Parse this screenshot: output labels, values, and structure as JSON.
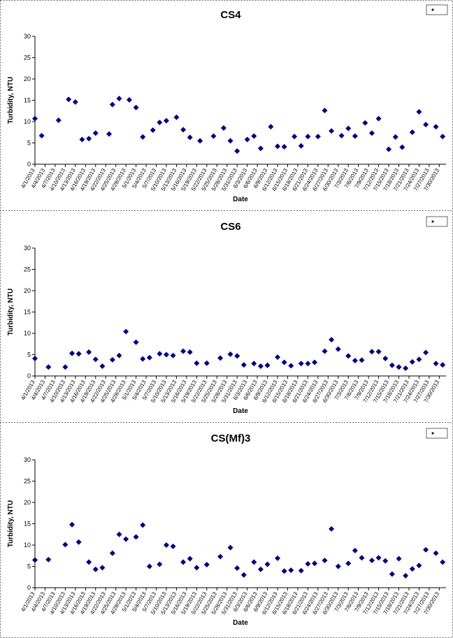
{
  "chart_data": [
    {
      "type": "scatter",
      "title": "CS4",
      "xlabel": "Date",
      "ylabel": "Turbidity, NTU",
      "color": "#000080",
      "xlim": [
        "4/1/2013",
        "8/1/2013"
      ],
      "ylim": [
        0,
        30
      ],
      "yticks": [
        0,
        5,
        10,
        15,
        20,
        25,
        30
      ],
      "xticks": [
        "4/1/2013",
        "4/4/2013",
        "4/7/2013",
        "4/10/2013",
        "4/13/2013",
        "4/16/2013",
        "4/19/2013",
        "4/22/2013",
        "4/25/2013",
        "4/28/2013",
        "5/1/2013",
        "5/4/2013",
        "5/7/2013",
        "5/10/2013",
        "5/13/2013",
        "5/16/2013",
        "5/19/2013",
        "5/22/2013",
        "5/25/2013",
        "5/28/2013",
        "5/31/2013",
        "6/3/2013",
        "6/6/2013",
        "6/9/2013",
        "6/12/2013",
        "6/15/2013",
        "6/18/2013",
        "6/21/2013",
        "6/24/2013",
        "6/27/2013",
        "6/30/2013",
        "7/3/2013",
        "7/6/2013",
        "7/9/2013",
        "7/12/2013",
        "7/15/2013",
        "7/18/2013",
        "7/21/2013",
        "7/24/2013",
        "7/27/2013",
        "7/30/2013"
      ],
      "x": [
        "4/1/2013",
        "4/3/2013",
        "4/8/2013",
        "4/11/2013",
        "4/13/2013",
        "4/15/2013",
        "4/17/2013",
        "4/19/2013",
        "4/23/2013",
        "4/24/2013",
        "4/26/2013",
        "4/29/2013",
        "5/1/2013",
        "5/3/2013",
        "5/6/2013",
        "5/8/2013",
        "5/10/2013",
        "5/13/2013",
        "5/15/2013",
        "5/17/2013",
        "5/20/2013",
        "5/24/2013",
        "5/27/2013",
        "5/29/2013",
        "5/31/2013",
        "6/3/2013",
        "6/5/2013",
        "6/7/2013",
        "6/10/2013",
        "6/12/2013",
        "6/14/2013",
        "6/17/2013",
        "6/19/2013",
        "6/21/2013",
        "6/24/2013",
        "6/26/2013",
        "6/28/2013",
        "7/1/2013",
        "7/3/2013",
        "7/5/2013",
        "7/8/2013",
        "7/10/2013",
        "7/12/2013",
        "7/15/2013",
        "7/17/2013",
        "7/19/2013",
        "7/22/2013",
        "7/24/2013",
        "7/26/2013",
        "7/29/2013",
        "7/31/2013"
      ],
      "values": [
        10.7,
        6.7,
        10.3,
        15.2,
        14.6,
        5.8,
        6.0,
        7.3,
        7.1,
        14.0,
        15.4,
        15.1,
        13.3,
        6.4,
        8.0,
        9.8,
        10.2,
        11.0,
        8.1,
        6.3,
        5.5,
        6.6,
        8.5,
        5.5,
        3.1,
        5.8,
        6.6,
        3.7,
        8.8,
        4.2,
        4.1,
        6.5,
        4.3,
        6.5,
        6.5,
        12.6,
        7.8,
        6.7,
        8.4,
        6.6,
        9.7,
        7.3,
        10.7,
        3.5,
        6.4,
        4.0,
        7.5,
        12.3,
        9.3,
        8.8,
        6.5
      ]
    },
    {
      "type": "scatter",
      "title": "CS6",
      "xlabel": "Date",
      "ylabel": "Turbidity, NTU",
      "color": "#000080",
      "xlim": [
        "4/1/2013",
        "8/1/2013"
      ],
      "ylim": [
        0,
        30
      ],
      "yticks": [
        0,
        5,
        10,
        15,
        20,
        25,
        30
      ],
      "xticks": [
        "4/1/2013",
        "4/4/2013",
        "4/7/2013",
        "4/10/2013",
        "4/13/2013",
        "4/16/2013",
        "4/19/2013",
        "4/22/2013",
        "4/25/2013",
        "4/28/2013",
        "5/1/2013",
        "5/4/2013",
        "5/7/2013",
        "5/10/2013",
        "5/13/2013",
        "5/16/2013",
        "5/19/2013",
        "5/22/2013",
        "5/25/2013",
        "5/28/2013",
        "5/31/2013",
        "6/3/2013",
        "6/6/2013",
        "6/9/2013",
        "6/12/2013",
        "6/15/2013",
        "6/18/2013",
        "6/21/2013",
        "6/24/2013",
        "6/27/2013",
        "6/30/2013",
        "7/3/2013",
        "7/6/2013",
        "7/9/2013",
        "7/12/2013",
        "7/15/2013",
        "7/18/2013",
        "7/21/2013",
        "7/24/2013",
        "7/27/2013",
        "7/30/2013"
      ],
      "x": [
        "4/1/2013",
        "4/5/2013",
        "4/10/2013",
        "4/12/2013",
        "4/14/2013",
        "4/17/2013",
        "4/19/2013",
        "4/21/2013",
        "4/24/2013",
        "4/26/2013",
        "4/28/2013",
        "5/1/2013",
        "5/3/2013",
        "5/5/2013",
        "5/8/2013",
        "5/10/2013",
        "5/12/2013",
        "5/15/2013",
        "5/17/2013",
        "5/19/2013",
        "5/22/2013",
        "5/26/2013",
        "5/29/2013",
        "5/31/2013",
        "6/2/2013",
        "6/5/2013",
        "6/7/2013",
        "6/9/2013",
        "6/12/2013",
        "6/14/2013",
        "6/16/2013",
        "6/19/2013",
        "6/21/2013",
        "6/23/2013",
        "6/26/2013",
        "6/28/2013",
        "6/30/2013",
        "7/3/2013",
        "7/5/2013",
        "7/7/2013",
        "7/10/2013",
        "7/12/2013",
        "7/14/2013",
        "7/16/2013",
        "7/18/2013",
        "7/20/2013",
        "7/22/2013",
        "7/24/2013",
        "7/26/2013",
        "7/29/2013",
        "7/31/2013"
      ],
      "values": [
        4.1,
        2.1,
        2.1,
        5.3,
        5.2,
        5.6,
        3.9,
        2.3,
        3.8,
        4.8,
        10.4,
        7.9,
        4.0,
        4.3,
        5.2,
        5.0,
        4.8,
        5.8,
        5.6,
        3.0,
        3.0,
        4.2,
        5.1,
        4.7,
        2.6,
        2.9,
        2.3,
        2.5,
        4.4,
        3.2,
        2.4,
        2.9,
        2.9,
        3.2,
        5.8,
        8.5,
        6.3,
        4.7,
        3.6,
        3.7,
        5.7,
        5.7,
        4.1,
        2.5,
        2.1,
        1.8,
        3.3,
        3.9,
        5.5,
        2.9,
        2.6
      ]
    },
    {
      "type": "scatter",
      "title": "CS(Mf)3",
      "xlabel": "Date",
      "ylabel": "Turbidity, NTU",
      "color": "#000080",
      "xlim": [
        "4/1/2013",
        "8/1/2013"
      ],
      "ylim": [
        0,
        30
      ],
      "yticks": [
        0,
        5,
        10,
        15,
        20,
        25,
        30
      ],
      "xticks": [
        "4/1/2013",
        "4/4/2013",
        "4/7/2013",
        "4/10/2013",
        "4/13/2013",
        "4/16/2013",
        "4/19/2013",
        "4/22/2013",
        "4/25/2013",
        "4/28/2013",
        "5/1/2013",
        "5/4/2013",
        "5/7/2013",
        "5/10/2013",
        "5/13/2013",
        "5/16/2013",
        "5/19/2013",
        "5/22/2013",
        "5/25/2013",
        "5/28/2013",
        "5/31/2013",
        "6/3/2013",
        "6/6/2013",
        "6/9/2013",
        "6/12/2013",
        "6/15/2013",
        "6/18/2013",
        "6/21/2013",
        "6/24/2013",
        "6/27/2013",
        "6/30/2013",
        "7/3/2013",
        "7/6/2013",
        "7/9/2013",
        "7/12/2013",
        "7/15/2013",
        "7/18/2013",
        "7/21/2013",
        "7/24/2013",
        "7/27/2013",
        "7/30/2013"
      ],
      "x": [
        "4/1/2013",
        "4/5/2013",
        "4/10/2013",
        "4/12/2013",
        "4/14/2013",
        "4/17/2013",
        "4/19/2013",
        "4/21/2013",
        "4/24/2013",
        "4/26/2013",
        "4/28/2013",
        "5/1/2013",
        "5/3/2013",
        "5/5/2013",
        "5/8/2013",
        "5/10/2013",
        "5/12/2013",
        "5/15/2013",
        "5/17/2013",
        "5/19/2013",
        "5/22/2013",
        "5/26/2013",
        "5/29/2013",
        "5/31/2013",
        "6/2/2013",
        "6/5/2013",
        "6/7/2013",
        "6/9/2013",
        "6/12/2013",
        "6/14/2013",
        "6/16/2013",
        "6/19/2013",
        "6/21/2013",
        "6/23/2013",
        "6/26/2013",
        "6/28/2013",
        "6/30/2013",
        "7/3/2013",
        "7/5/2013",
        "7/7/2013",
        "7/10/2013",
        "7/12/2013",
        "7/14/2013",
        "7/16/2013",
        "7/18/2013",
        "7/20/2013",
        "7/22/2013",
        "7/24/2013",
        "7/26/2013",
        "7/29/2013",
        "7/31/2013"
      ],
      "values": [
        6.5,
        6.6,
        10.1,
        14.8,
        10.7,
        6.0,
        4.3,
        4.7,
        8.1,
        12.5,
        11.4,
        11.9,
        14.7,
        5.0,
        5.5,
        10.0,
        9.7,
        6.0,
        6.8,
        4.7,
        5.4,
        7.3,
        9.4,
        4.6,
        3.0,
        6.0,
        4.3,
        5.5,
        6.9,
        3.9,
        4.1,
        4.0,
        5.6,
        5.7,
        6.4,
        13.8,
        5.0,
        5.7,
        8.7,
        7.0,
        6.4,
        7.0,
        6.3,
        3.2,
        6.8,
        2.8,
        4.4,
        5.2,
        8.9,
        8.1,
        6.0
      ]
    }
  ]
}
